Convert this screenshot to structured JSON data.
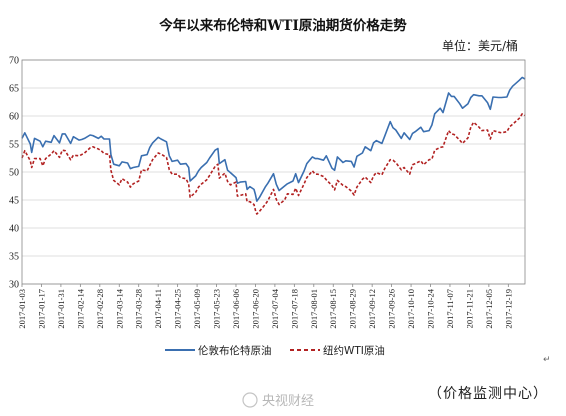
{
  "chart_data": {
    "type": "line",
    "title": "今年以来布伦特和WTI原油期货价格走势",
    "unit_label": "单位：美元/桶",
    "ylim": [
      30,
      70
    ],
    "y_ticks": [
      30,
      35,
      40,
      45,
      50,
      55,
      60,
      65,
      70
    ],
    "x_tick_labels": [
      "2017-01-03",
      "2017-01-17",
      "2017-01-31",
      "2017-02-14",
      "2017-02-28",
      "2017-03-14",
      "2017-03-28",
      "2017-04-11",
      "2017-04-25",
      "2017-05-09",
      "2017-05-23",
      "2017-06-06",
      "2017-06-20",
      "2017-07-04",
      "2017-07-18",
      "2017-08-01",
      "2017-08-15",
      "2017-08-29",
      "2017-09-12",
      "2017-09-26",
      "2017-10-10",
      "2017-10-24",
      "2017-11-07",
      "2017-11-21",
      "2017-12-05",
      "2017-12-19"
    ],
    "grid": true,
    "legend_position": "bottom",
    "series": [
      {
        "name": "伦敦布伦特原油",
        "color": "#3a6fb0",
        "style": "solid",
        "points": [
          [
            "2017-01-03",
            56.0
          ],
          [
            "2017-01-05",
            57.0
          ],
          [
            "2017-01-09",
            55.0
          ],
          [
            "2017-01-10",
            53.5
          ],
          [
            "2017-01-12",
            56.0
          ],
          [
            "2017-01-16",
            55.5
          ],
          [
            "2017-01-18",
            54.5
          ],
          [
            "2017-01-20",
            55.5
          ],
          [
            "2017-01-24",
            55.3
          ],
          [
            "2017-01-26",
            56.5
          ],
          [
            "2017-01-30",
            55.2
          ],
          [
            "2017-02-01",
            56.8
          ],
          [
            "2017-02-03",
            56.8
          ],
          [
            "2017-02-07",
            55.1
          ],
          [
            "2017-02-09",
            56.3
          ],
          [
            "2017-02-13",
            55.7
          ],
          [
            "2017-02-15",
            55.8
          ],
          [
            "2017-02-17",
            56.0
          ],
          [
            "2017-02-21",
            56.6
          ],
          [
            "2017-02-23",
            56.5
          ],
          [
            "2017-02-27",
            56.0
          ],
          [
            "2017-03-01",
            56.4
          ],
          [
            "2017-03-03",
            55.9
          ],
          [
            "2017-03-07",
            55.9
          ],
          [
            "2017-03-08",
            53.1
          ],
          [
            "2017-03-10",
            51.4
          ],
          [
            "2017-03-14",
            51.1
          ],
          [
            "2017-03-16",
            51.8
          ],
          [
            "2017-03-20",
            51.6
          ],
          [
            "2017-03-22",
            50.6
          ],
          [
            "2017-03-24",
            50.8
          ],
          [
            "2017-03-28",
            51.0
          ],
          [
            "2017-03-30",
            52.9
          ],
          [
            "2017-04-03",
            53.1
          ],
          [
            "2017-04-05",
            54.4
          ],
          [
            "2017-04-07",
            55.2
          ],
          [
            "2017-04-11",
            56.2
          ],
          [
            "2017-04-13",
            55.9
          ],
          [
            "2017-04-17",
            55.4
          ],
          [
            "2017-04-19",
            52.9
          ],
          [
            "2017-04-21",
            51.9
          ],
          [
            "2017-04-25",
            52.1
          ],
          [
            "2017-04-27",
            51.4
          ],
          [
            "2017-05-01",
            51.5
          ],
          [
            "2017-05-03",
            50.8
          ],
          [
            "2017-05-04",
            48.4
          ],
          [
            "2017-05-08",
            49.3
          ],
          [
            "2017-05-10",
            50.2
          ],
          [
            "2017-05-12",
            50.8
          ],
          [
            "2017-05-16",
            51.7
          ],
          [
            "2017-05-18",
            52.5
          ],
          [
            "2017-05-22",
            53.9
          ],
          [
            "2017-05-24",
            54.2
          ],
          [
            "2017-05-25",
            51.5
          ],
          [
            "2017-05-29",
            52.2
          ],
          [
            "2017-05-31",
            50.3
          ],
          [
            "2017-06-02",
            49.9
          ],
          [
            "2017-06-06",
            49.0
          ],
          [
            "2017-06-07",
            48.0
          ],
          [
            "2017-06-09",
            48.2
          ],
          [
            "2017-06-13",
            48.3
          ],
          [
            "2017-06-14",
            46.9
          ],
          [
            "2017-06-16",
            47.4
          ],
          [
            "2017-06-19",
            46.9
          ],
          [
            "2017-06-20",
            46.0
          ],
          [
            "2017-06-21",
            44.8
          ],
          [
            "2017-06-23",
            45.5
          ],
          [
            "2017-06-27",
            47.3
          ],
          [
            "2017-06-29",
            48.0
          ],
          [
            "2017-07-03",
            49.7
          ],
          [
            "2017-07-05",
            47.8
          ],
          [
            "2017-07-07",
            46.7
          ],
          [
            "2017-07-11",
            47.5
          ],
          [
            "2017-07-13",
            47.9
          ],
          [
            "2017-07-17",
            48.4
          ],
          [
            "2017-07-19",
            49.7
          ],
          [
            "2017-07-21",
            48.1
          ],
          [
            "2017-07-25",
            50.2
          ],
          [
            "2017-07-27",
            51.5
          ],
          [
            "2017-07-31",
            52.7
          ],
          [
            "2017-08-02",
            52.4
          ],
          [
            "2017-08-04",
            52.4
          ],
          [
            "2017-08-08",
            52.1
          ],
          [
            "2017-08-10",
            52.9
          ],
          [
            "2017-08-14",
            50.7
          ],
          [
            "2017-08-16",
            50.3
          ],
          [
            "2017-08-18",
            52.7
          ],
          [
            "2017-08-22",
            51.7
          ],
          [
            "2017-08-24",
            52.0
          ],
          [
            "2017-08-28",
            51.9
          ],
          [
            "2017-08-30",
            50.9
          ],
          [
            "2017-09-01",
            52.8
          ],
          [
            "2017-09-05",
            53.4
          ],
          [
            "2017-09-07",
            54.5
          ],
          [
            "2017-09-11",
            53.8
          ],
          [
            "2017-09-13",
            55.2
          ],
          [
            "2017-09-15",
            55.6
          ],
          [
            "2017-09-19",
            55.1
          ],
          [
            "2017-09-21",
            56.4
          ],
          [
            "2017-09-25",
            59.0
          ],
          [
            "2017-09-27",
            57.9
          ],
          [
            "2017-09-29",
            57.5
          ],
          [
            "2017-10-03",
            56.0
          ],
          [
            "2017-10-05",
            57.0
          ],
          [
            "2017-10-09",
            55.8
          ],
          [
            "2017-10-11",
            56.9
          ],
          [
            "2017-10-13",
            57.2
          ],
          [
            "2017-10-17",
            58.0
          ],
          [
            "2017-10-19",
            57.2
          ],
          [
            "2017-10-23",
            57.4
          ],
          [
            "2017-10-25",
            58.4
          ],
          [
            "2017-10-27",
            60.4
          ],
          [
            "2017-10-31",
            61.4
          ],
          [
            "2017-11-02",
            60.6
          ],
          [
            "2017-11-06",
            64.1
          ],
          [
            "2017-11-08",
            63.5
          ],
          [
            "2017-11-10",
            63.5
          ],
          [
            "2017-11-14",
            62.2
          ],
          [
            "2017-11-16",
            61.4
          ],
          [
            "2017-11-20",
            62.2
          ],
          [
            "2017-11-22",
            63.3
          ],
          [
            "2017-11-24",
            63.8
          ],
          [
            "2017-11-28",
            63.6
          ],
          [
            "2017-11-30",
            63.6
          ],
          [
            "2017-12-04",
            62.4
          ],
          [
            "2017-12-06",
            61.2
          ],
          [
            "2017-12-08",
            63.4
          ],
          [
            "2017-12-12",
            63.3
          ],
          [
            "2017-12-14",
            63.3
          ],
          [
            "2017-12-18",
            63.4
          ],
          [
            "2017-12-20",
            64.6
          ],
          [
            "2017-12-22",
            65.3
          ],
          [
            "2017-12-27",
            66.4
          ],
          [
            "2017-12-29",
            66.9
          ],
          [
            "2017-12-31",
            66.6
          ]
        ]
      },
      {
        "name": "纽约WTI原油",
        "color": "#b22222",
        "style": "dashed",
        "points": [
          [
            "2017-01-03",
            52.5
          ],
          [
            "2017-01-05",
            53.8
          ],
          [
            "2017-01-09",
            52.0
          ],
          [
            "2017-01-10",
            50.8
          ],
          [
            "2017-01-12",
            52.4
          ],
          [
            "2017-01-16",
            52.4
          ],
          [
            "2017-01-18",
            51.1
          ],
          [
            "2017-01-20",
            52.4
          ],
          [
            "2017-01-24",
            53.2
          ],
          [
            "2017-01-26",
            53.8
          ],
          [
            "2017-01-30",
            52.6
          ],
          [
            "2017-02-01",
            53.9
          ],
          [
            "2017-02-03",
            53.8
          ],
          [
            "2017-02-07",
            52.2
          ],
          [
            "2017-02-09",
            53.0
          ],
          [
            "2017-02-13",
            52.9
          ],
          [
            "2017-02-15",
            53.1
          ],
          [
            "2017-02-17",
            53.4
          ],
          [
            "2017-02-21",
            54.3
          ],
          [
            "2017-02-23",
            54.5
          ],
          [
            "2017-02-27",
            54.1
          ],
          [
            "2017-03-01",
            53.8
          ],
          [
            "2017-03-03",
            53.3
          ],
          [
            "2017-03-07",
            53.1
          ],
          [
            "2017-03-08",
            50.3
          ],
          [
            "2017-03-10",
            48.5
          ],
          [
            "2017-03-14",
            47.7
          ],
          [
            "2017-03-16",
            48.8
          ],
          [
            "2017-03-20",
            48.2
          ],
          [
            "2017-03-22",
            47.3
          ],
          [
            "2017-03-24",
            47.9
          ],
          [
            "2017-03-28",
            48.4
          ],
          [
            "2017-03-30",
            50.4
          ],
          [
            "2017-04-03",
            50.2
          ],
          [
            "2017-04-05",
            51.2
          ],
          [
            "2017-04-07",
            52.2
          ],
          [
            "2017-04-11",
            53.4
          ],
          [
            "2017-04-13",
            53.2
          ],
          [
            "2017-04-17",
            52.6
          ],
          [
            "2017-04-19",
            50.4
          ],
          [
            "2017-04-21",
            49.6
          ],
          [
            "2017-04-25",
            49.6
          ],
          [
            "2017-04-27",
            49.0
          ],
          [
            "2017-05-01",
            48.8
          ],
          [
            "2017-05-03",
            47.8
          ],
          [
            "2017-05-04",
            45.5
          ],
          [
            "2017-05-08",
            46.4
          ],
          [
            "2017-05-10",
            47.3
          ],
          [
            "2017-05-12",
            47.8
          ],
          [
            "2017-05-16",
            48.6
          ],
          [
            "2017-05-18",
            49.4
          ],
          [
            "2017-05-22",
            51.0
          ],
          [
            "2017-05-24",
            51.4
          ],
          [
            "2017-05-25",
            48.9
          ],
          [
            "2017-05-29",
            49.8
          ],
          [
            "2017-05-31",
            48.3
          ],
          [
            "2017-06-02",
            47.7
          ],
          [
            "2017-06-06",
            48.2
          ],
          [
            "2017-06-07",
            45.7
          ],
          [
            "2017-06-09",
            45.8
          ],
          [
            "2017-06-13",
            46.1
          ],
          [
            "2017-06-14",
            44.7
          ],
          [
            "2017-06-16",
            44.7
          ],
          [
            "2017-06-19",
            44.2
          ],
          [
            "2017-06-20",
            43.2
          ],
          [
            "2017-06-21",
            42.5
          ],
          [
            "2017-06-23",
            43.0
          ],
          [
            "2017-06-27",
            44.2
          ],
          [
            "2017-06-29",
            44.9
          ],
          [
            "2017-07-03",
            46.9
          ],
          [
            "2017-07-05",
            45.1
          ],
          [
            "2017-07-07",
            44.2
          ],
          [
            "2017-07-11",
            45.0
          ],
          [
            "2017-07-13",
            46.1
          ],
          [
            "2017-07-17",
            46.0
          ],
          [
            "2017-07-19",
            47.1
          ],
          [
            "2017-07-21",
            45.8
          ],
          [
            "2017-07-25",
            47.9
          ],
          [
            "2017-07-27",
            49.0
          ],
          [
            "2017-07-31",
            50.2
          ],
          [
            "2017-08-02",
            49.6
          ],
          [
            "2017-08-04",
            49.6
          ],
          [
            "2017-08-08",
            49.2
          ],
          [
            "2017-08-10",
            48.6
          ],
          [
            "2017-08-14",
            47.6
          ],
          [
            "2017-08-16",
            46.8
          ],
          [
            "2017-08-18",
            48.5
          ],
          [
            "2017-08-22",
            47.6
          ],
          [
            "2017-08-24",
            47.4
          ],
          [
            "2017-08-28",
            46.6
          ],
          [
            "2017-08-30",
            45.9
          ],
          [
            "2017-09-01",
            47.3
          ],
          [
            "2017-09-05",
            48.7
          ],
          [
            "2017-09-07",
            49.1
          ],
          [
            "2017-09-11",
            48.1
          ],
          [
            "2017-09-13",
            49.3
          ],
          [
            "2017-09-15",
            49.9
          ],
          [
            "2017-09-19",
            49.5
          ],
          [
            "2017-09-21",
            50.6
          ],
          [
            "2017-09-25",
            52.2
          ],
          [
            "2017-09-27",
            52.1
          ],
          [
            "2017-09-29",
            51.7
          ],
          [
            "2017-10-03",
            50.4
          ],
          [
            "2017-10-05",
            50.8
          ],
          [
            "2017-10-09",
            49.6
          ],
          [
            "2017-10-11",
            51.3
          ],
          [
            "2017-10-13",
            51.5
          ],
          [
            "2017-10-17",
            52.0
          ],
          [
            "2017-10-19",
            51.3
          ],
          [
            "2017-10-23",
            52.2
          ],
          [
            "2017-10-25",
            52.3
          ],
          [
            "2017-10-27",
            53.9
          ],
          [
            "2017-10-31",
            54.4
          ],
          [
            "2017-11-02",
            54.5
          ],
          [
            "2017-11-06",
            57.4
          ],
          [
            "2017-11-08",
            56.8
          ],
          [
            "2017-11-10",
            56.7
          ],
          [
            "2017-11-14",
            55.7
          ],
          [
            "2017-11-16",
            55.1
          ],
          [
            "2017-11-20",
            56.1
          ],
          [
            "2017-11-22",
            58.0
          ],
          [
            "2017-11-24",
            58.9
          ],
          [
            "2017-11-28",
            58.0
          ],
          [
            "2017-11-30",
            57.4
          ],
          [
            "2017-12-04",
            57.5
          ],
          [
            "2017-12-06",
            55.9
          ],
          [
            "2017-12-08",
            57.4
          ],
          [
            "2017-12-12",
            57.1
          ],
          [
            "2017-12-14",
            57.0
          ],
          [
            "2017-12-18",
            57.2
          ],
          [
            "2017-12-20",
            58.1
          ],
          [
            "2017-12-22",
            58.5
          ],
          [
            "2017-12-27",
            59.6
          ],
          [
            "2017-12-29",
            60.4
          ],
          [
            "2017-12-31",
            60.1
          ]
        ]
      }
    ]
  },
  "footer": {
    "source": "（价格监测中心）",
    "paragraph_mark": "↵",
    "watermark": "央视财经"
  }
}
